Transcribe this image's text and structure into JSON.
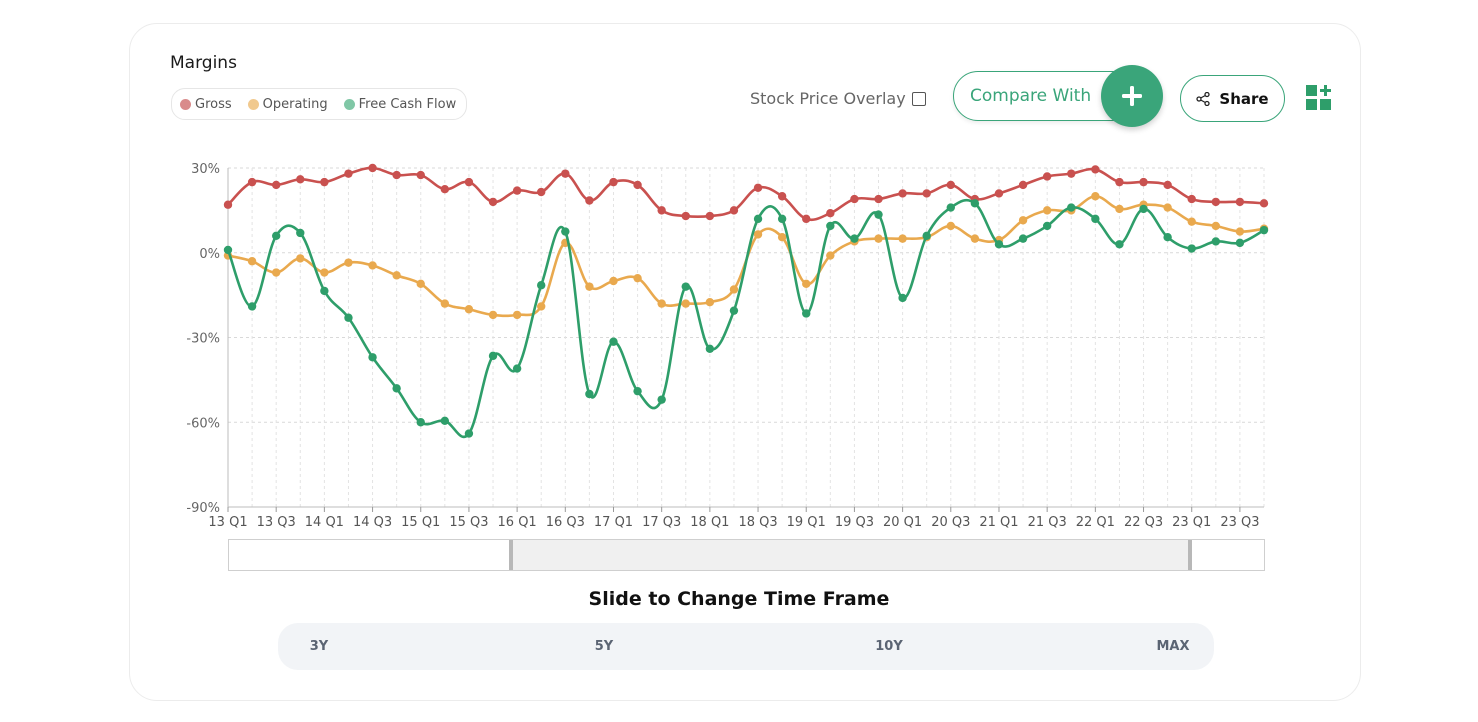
{
  "header": {
    "title": "Margins",
    "stock_overlay_label": "Stock Price Overlay",
    "compare_label": "Compare With",
    "share_label": "Share"
  },
  "legend": [
    {
      "name": "Gross",
      "color": "#d98b8b",
      "line": "#c9514f"
    },
    {
      "name": "Operating",
      "color": "#f1c98e",
      "line": "#e9a94e"
    },
    {
      "name": "Free Cash Flow",
      "color": "#80c7a6",
      "line": "#2e9e6a"
    }
  ],
  "slider": {
    "label": "Slide to Change Time Frame",
    "range_buttons": [
      "3Y",
      "5Y",
      "10Y",
      "MAX"
    ]
  },
  "chart_data": {
    "type": "line",
    "ylim": [
      -90,
      30
    ],
    "yticks": [
      30,
      0,
      -30,
      -60,
      -90
    ],
    "ytick_labels": [
      "30%",
      "0%",
      "-30%",
      "-60%",
      "-90%"
    ],
    "grid": true,
    "legend_position": "top-left",
    "x": [
      "13 Q1",
      "13 Q2",
      "13 Q3",
      "13 Q4",
      "14 Q1",
      "14 Q2",
      "14 Q3",
      "14 Q4",
      "15 Q1",
      "15 Q2",
      "15 Q3",
      "15 Q4",
      "16 Q1",
      "16 Q2",
      "16 Q3",
      "16 Q4",
      "17 Q1",
      "17 Q2",
      "17 Q3",
      "17 Q4",
      "18 Q1",
      "18 Q2",
      "18 Q3",
      "18 Q4",
      "19 Q1",
      "19 Q2",
      "19 Q3",
      "19 Q4",
      "20 Q1",
      "20 Q2",
      "20 Q3",
      "20 Q4",
      "21 Q1",
      "21 Q2",
      "21 Q3",
      "21 Q4",
      "22 Q1",
      "22 Q2",
      "22 Q3",
      "22 Q4",
      "23 Q1",
      "23 Q2",
      "23 Q3",
      "23 Q4"
    ],
    "xtick_labels": [
      "13 Q1",
      "13 Q3",
      "14 Q1",
      "14 Q3",
      "15 Q1",
      "15 Q3",
      "16 Q1",
      "16 Q3",
      "17 Q1",
      "17 Q3",
      "18 Q1",
      "18 Q3",
      "19 Q1",
      "19 Q3",
      "20 Q1",
      "20 Q3",
      "21 Q1",
      "21 Q3",
      "22 Q1",
      "22 Q3",
      "23 Q1",
      "23 Q3"
    ],
    "series": [
      {
        "name": "Gross",
        "color": "#c9514f",
        "values": [
          17,
          25,
          24,
          26,
          25,
          28,
          30,
          27.5,
          27.5,
          22.5,
          25,
          18,
          22,
          21.5,
          28,
          18.5,
          25,
          24,
          15,
          13,
          13,
          15,
          23,
          20,
          12,
          14,
          19,
          19,
          21,
          21,
          24,
          19,
          21,
          24,
          27,
          28,
          29.5,
          25,
          25,
          24,
          19,
          18,
          18,
          17.5
        ]
      },
      {
        "name": "Operating",
        "color": "#e9a94e",
        "values": [
          -1,
          -3,
          -7,
          -2,
          -7,
          -3.5,
          -4.5,
          -8,
          -11,
          -18,
          -20,
          -22,
          -22,
          -19,
          3.5,
          -12,
          -10,
          -9,
          -18,
          -18,
          -17.5,
          -13,
          6.5,
          5.5,
          -11,
          -1,
          4,
          5,
          5,
          5.5,
          9.5,
          5,
          4.5,
          11.5,
          15,
          15,
          20,
          15.5,
          17,
          16,
          11,
          9.5,
          7.5,
          8.5
        ]
      },
      {
        "name": "Free Cash Flow",
        "color": "#2e9e6a",
        "values": [
          1,
          -19,
          6,
          7,
          -13.5,
          -23,
          -37,
          -48,
          -60,
          -59.5,
          -64,
          -36.5,
          -41,
          -11.5,
          7.5,
          -50,
          -31.5,
          -49,
          -52,
          -12,
          -34,
          -20.5,
          12,
          12,
          -21.5,
          9.5,
          5,
          13.5,
          -16,
          6,
          16,
          17.5,
          3,
          5,
          9.5,
          16,
          12,
          3,
          15.5,
          5.5,
          1.5,
          4,
          3.5,
          8
        ]
      }
    ]
  }
}
